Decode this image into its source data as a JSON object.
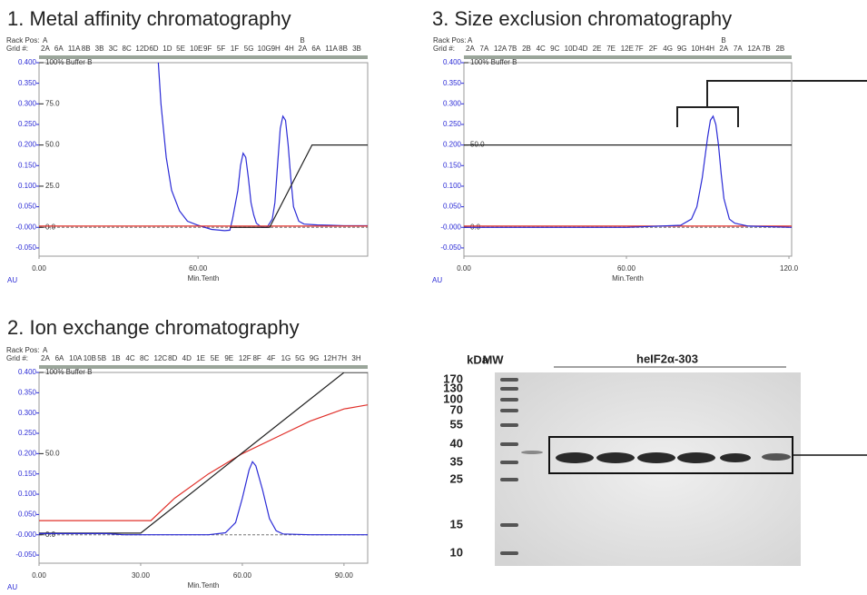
{
  "chart_data": [
    {
      "type": "line",
      "title": "1.  Metal affinity chromatography",
      "rack_label": "Rack Pos:",
      "grid_label": "Grid #:",
      "fractions": [
        "2A",
        "6A",
        "11A",
        "8B",
        "3B",
        "3C",
        "8C",
        "12D",
        "6D",
        "1D",
        "5E",
        "10E",
        "9F",
        "5F",
        "1F",
        "5G",
        "10G",
        "9H",
        "4H",
        "2A",
        "6A",
        "11A",
        "8B",
        "3B"
      ],
      "rack": [
        "A",
        null,
        null,
        null,
        null,
        null,
        null,
        null,
        null,
        null,
        null,
        null,
        null,
        null,
        null,
        null,
        null,
        null,
        null,
        "B",
        null,
        null,
        null,
        null
      ],
      "xlabel": "Min.Tenth",
      "ylabel": "AU",
      "xlim": [
        0,
        124
      ],
      "xticks": [
        {
          "value": 0,
          "label": "0.00"
        },
        {
          "value": 60,
          "label": "60.00"
        }
      ],
      "ylim": [
        -0.07,
        0.4
      ],
      "yticks": [
        {
          "value": 0.4,
          "label": "0.400"
        },
        {
          "value": 0.35,
          "label": "0.350"
        },
        {
          "value": 0.3,
          "label": "0.300"
        },
        {
          "value": 0.25,
          "label": "0.250"
        },
        {
          "value": 0.2,
          "label": "0.200"
        },
        {
          "value": 0.15,
          "label": "0.150"
        },
        {
          "value": 0.1,
          "label": "0.100"
        },
        {
          "value": 0.05,
          "label": "0.050"
        },
        {
          "value": 0,
          "label": "-0.000"
        },
        {
          "value": -0.05,
          "label": "-0.050"
        }
      ],
      "y2lim": [
        -17.5,
        100
      ],
      "y2ticks": [
        {
          "value": 100,
          "label": "100% Buffer B"
        },
        {
          "value": 75,
          "label": "75.0"
        },
        {
          "value": 50,
          "label": "50.0"
        },
        {
          "value": 25,
          "label": "25.0"
        },
        {
          "value": 0,
          "label": "0.0"
        }
      ],
      "series": [
        {
          "color": "#2b2bd6",
          "x": [
            44,
            45,
            46,
            48,
            50,
            53,
            56,
            60,
            65,
            70,
            72,
            73,
            75,
            76,
            77,
            78,
            79,
            80,
            81,
            82,
            84,
            86,
            88,
            89,
            90,
            91,
            92,
            93,
            94,
            95,
            96,
            98,
            100,
            105,
            110,
            115,
            124
          ],
          "values": [
            0.45,
            0.4,
            0.3,
            0.17,
            0.09,
            0.04,
            0.015,
            0.005,
            -0.005,
            -0.008,
            -0.007,
            0.02,
            0.09,
            0.15,
            0.18,
            0.17,
            0.12,
            0.06,
            0.03,
            0.01,
            0.0,
            0.0,
            0.02,
            0.06,
            0.15,
            0.24,
            0.27,
            0.26,
            0.2,
            0.12,
            0.05,
            0.015,
            0.008,
            0.006,
            0.005,
            0.004,
            0.004
          ]
        },
        {
          "color": "#e0302a",
          "x": [
            0,
            124
          ],
          "values": [
            0.003,
            0.003
          ]
        },
        {
          "color": "#222222",
          "axis": "y2",
          "x": [
            72,
            87,
            103,
            124
          ],
          "values": [
            0,
            0,
            50,
            50
          ]
        }
      ]
    },
    {
      "type": "line",
      "title": "2. Ion exchange chromatography",
      "rack_label": "Rack Pos:",
      "grid_label": "Grid #:",
      "fractions": [
        "2A",
        "6A",
        "10A",
        "10B",
        "5B",
        "1B",
        "4C",
        "8C",
        "12C",
        "8D",
        "4D",
        "1E",
        "5E",
        "9E",
        "12F",
        "8F",
        "4F",
        "1G",
        "5G",
        "9G",
        "12H",
        "7H",
        "3H"
      ],
      "rack": [
        "A",
        null,
        null,
        null,
        null,
        null,
        null,
        null,
        null,
        null,
        null,
        null,
        null,
        null,
        null,
        null,
        null,
        null,
        null,
        null,
        null,
        null,
        null
      ],
      "xlabel": "Min.Tenth",
      "ylabel": "AU",
      "xlim": [
        0,
        97
      ],
      "xticks": [
        {
          "value": 0,
          "label": "0.00"
        },
        {
          "value": 30,
          "label": "30.00"
        },
        {
          "value": 60,
          "label": "60.00"
        },
        {
          "value": 90,
          "label": "90.00"
        }
      ],
      "ylim": [
        -0.07,
        0.4
      ],
      "yticks": [
        {
          "value": 0.4,
          "label": "0.400"
        },
        {
          "value": 0.35,
          "label": "0.350"
        },
        {
          "value": 0.3,
          "label": "0.300"
        },
        {
          "value": 0.25,
          "label": "0.250"
        },
        {
          "value": 0.2,
          "label": "0.200"
        },
        {
          "value": 0.15,
          "label": "0.150"
        },
        {
          "value": 0.1,
          "label": "0.100"
        },
        {
          "value": 0.05,
          "label": "0.050"
        },
        {
          "value": 0,
          "label": "-0.000"
        },
        {
          "value": -0.05,
          "label": "-0.050"
        }
      ],
      "y2lim": [
        -17.5,
        100
      ],
      "y2ticks": [
        {
          "value": 100,
          "label": "100% Buffer B"
        },
        {
          "value": 50,
          "label": "50.0"
        },
        {
          "value": 0,
          "label": "0.0"
        }
      ],
      "series": [
        {
          "color": "#e0302a",
          "x": [
            0,
            33,
            40,
            50,
            60,
            70,
            80,
            90,
            97
          ],
          "values": [
            0.035,
            0.035,
            0.09,
            0.15,
            0.2,
            0.24,
            0.28,
            0.31,
            0.32
          ]
        },
        {
          "color": "#222222",
          "axis": "y2",
          "x": [
            0,
            30,
            90,
            97
          ],
          "values": [
            1,
            1,
            100,
            100
          ]
        },
        {
          "color": "#2b2bd6",
          "x": [
            0,
            20,
            25,
            30,
            50,
            55,
            58,
            60,
            62,
            63,
            64,
            66,
            68,
            70,
            72,
            80,
            97
          ],
          "values": [
            0.003,
            0.003,
            0.0,
            0.0,
            0.0,
            0.005,
            0.03,
            0.09,
            0.16,
            0.18,
            0.17,
            0.11,
            0.04,
            0.01,
            0.002,
            0.0,
            0.0
          ]
        }
      ]
    },
    {
      "type": "line",
      "title": "3. Size exclusion chromatography",
      "rack_label": "Rack Pos:",
      "grid_label": "Grid #:",
      "fractions": [
        "2A",
        "7A",
        "12A",
        "7B",
        "2B",
        "4C",
        "9C",
        "10D",
        "4D",
        "2E",
        "7E",
        "12E",
        "7F",
        "2F",
        "4G",
        "9G",
        "10H",
        "4H",
        "2A",
        "7A",
        "12A",
        "7B",
        "2B"
      ],
      "rack": [
        "A",
        null,
        null,
        null,
        null,
        null,
        null,
        null,
        null,
        null,
        null,
        null,
        null,
        null,
        null,
        null,
        null,
        null,
        "B",
        null,
        null,
        null,
        null
      ],
      "xlabel": "Min.Tenth",
      "ylabel": "AU",
      "xlim": [
        0,
        121
      ],
      "xticks": [
        {
          "value": 0,
          "label": "0.00"
        },
        {
          "value": 60,
          "label": "60.00"
        },
        {
          "value": 120,
          "label": "120.0"
        }
      ],
      "ylim": [
        -0.07,
        0.4
      ],
      "yticks": [
        {
          "value": 0.4,
          "label": "0.400"
        },
        {
          "value": 0.35,
          "label": "0.350"
        },
        {
          "value": 0.3,
          "label": "0.300"
        },
        {
          "value": 0.25,
          "label": "0.250"
        },
        {
          "value": 0.2,
          "label": "0.200"
        },
        {
          "value": 0.15,
          "label": "0.150"
        },
        {
          "value": 0.1,
          "label": "0.100"
        },
        {
          "value": 0.05,
          "label": "0.050"
        },
        {
          "value": 0,
          "label": "-0.000"
        },
        {
          "value": -0.05,
          "label": "-0.050"
        }
      ],
      "y2lim": [
        -17.5,
        100
      ],
      "y2ticks": [
        {
          "value": 100,
          "label": "100% Buffer B"
        },
        {
          "value": 50,
          "label": "50.0"
        },
        {
          "value": 0,
          "label": "0.0"
        }
      ],
      "series": [
        {
          "color": "#222222",
          "axis": "y2",
          "x": [
            0,
            121
          ],
          "values": [
            50,
            50
          ]
        },
        {
          "color": "#e0302a",
          "x": [
            0,
            121
          ],
          "values": [
            0.003,
            0.003
          ]
        },
        {
          "color": "#2b2bd6",
          "x": [
            0,
            60,
            80,
            84,
            86,
            88,
            90,
            91,
            92,
            93,
            94,
            95,
            96,
            98,
            100,
            105,
            121
          ],
          "values": [
            0.0,
            0.0,
            0.005,
            0.02,
            0.05,
            0.12,
            0.22,
            0.26,
            0.27,
            0.25,
            0.2,
            0.13,
            0.07,
            0.02,
            0.01,
            0.003,
            0.0
          ]
        }
      ]
    }
  ],
  "gel": {
    "unit_label": "kDa",
    "ladder_label": "MW",
    "sample_label": "heIF2α-303",
    "markers": [
      "170",
      "130",
      "100",
      "70",
      "55",
      "40",
      "35",
      "25",
      "15",
      "10"
    ]
  }
}
